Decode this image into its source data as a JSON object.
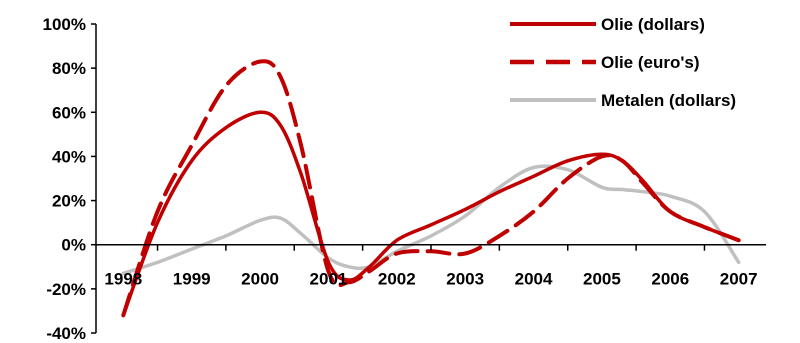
{
  "chart_data": {
    "type": "line",
    "title": "",
    "xlabel": "",
    "ylabel": "",
    "x": [
      1998,
      1998.5,
      1999,
      1999.5,
      2000,
      2000.3,
      2000.6,
      2001,
      2001.3,
      2001.6,
      2002,
      2002.5,
      2003,
      2003.5,
      2004,
      2004.5,
      2005,
      2005.3,
      2005.6,
      2006,
      2006.5,
      2007
    ],
    "x_tick_labels": [
      "1998",
      "1999",
      "2000",
      "2001",
      "2002",
      "2003",
      "2004",
      "2005",
      "2006",
      "2007"
    ],
    "x_range": [
      1997.6,
      2007.4
    ],
    "ylim": [
      -40,
      100
    ],
    "y_ticks": [
      -40,
      -20,
      0,
      20,
      40,
      60,
      80,
      100
    ],
    "y_tick_labels": [
      "-40%",
      "-20%",
      "0%",
      "20%",
      "40%",
      "60%",
      "80%",
      "100%"
    ],
    "legend_position": "top-right",
    "series": [
      {
        "name": "Olie (dollars)",
        "color": "#c00000",
        "dash": "solid",
        "values": [
          -32,
          10,
          38,
          53,
          60,
          54,
          32,
          -8,
          -16,
          -10,
          2,
          9,
          16,
          24,
          31,
          38,
          41,
          38,
          29,
          15,
          8,
          2
        ]
      },
      {
        "name": "Olie (euro's)",
        "color": "#c00000",
        "dash": "dashed",
        "values": [
          -32,
          15,
          45,
          72,
          83,
          76,
          45,
          -12,
          -17,
          -12,
          -4,
          -3,
          -4,
          4,
          15,
          30,
          40,
          38,
          28,
          15,
          8,
          2
        ]
      },
      {
        "name": "Metalen (dollars)",
        "color": "#c0c0c0",
        "dash": "solid",
        "values": [
          -13,
          -8,
          -2,
          4,
          11,
          12,
          5,
          -6,
          -10,
          -10,
          -3,
          4,
          13,
          26,
          35,
          34,
          26,
          25,
          24,
          22,
          15,
          -8
        ]
      }
    ]
  }
}
